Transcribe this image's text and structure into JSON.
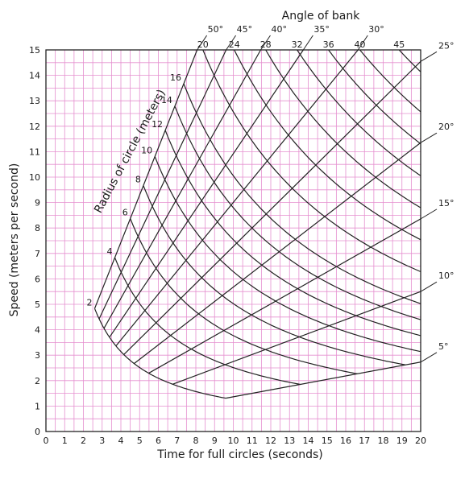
{
  "chart_data": {
    "type": "line",
    "xlabel": "Time for full circles (seconds)",
    "ylabel": "Speed (meters per second)",
    "x_ticks": [
      "0",
      "1",
      "2",
      "3",
      "4",
      "5",
      "6",
      "7",
      "8",
      "9",
      "10",
      "11",
      "12",
      "13",
      "14",
      "15",
      "16",
      "17",
      "18",
      "19",
      "20"
    ],
    "y_ticks": [
      "0",
      "1",
      "2",
      "3",
      "4",
      "5",
      "6",
      "7",
      "8",
      "9",
      "10",
      "11",
      "12",
      "13",
      "14",
      "15"
    ],
    "xlim": [
      0,
      20
    ],
    "ylim": [
      0,
      15
    ],
    "grid": true,
    "radius_label": "Radius of circle (meters)",
    "radius_values": [
      2,
      4,
      6,
      8,
      10,
      12,
      14,
      16,
      20,
      24,
      28,
      32,
      36,
      40,
      45
    ],
    "radius_labels": [
      "2",
      "4",
      "6",
      "8",
      "10",
      "12",
      "14",
      "16",
      "20",
      "24",
      "28",
      "32",
      "36",
      "40",
      "45"
    ],
    "angle_label": "Angle of bank",
    "angles_deg": [
      5,
      10,
      15,
      20,
      25,
      30,
      35,
      40,
      45,
      50
    ],
    "angle_labels": [
      "5°",
      "10°",
      "15°",
      "20°",
      "25°",
      "30°",
      "35°",
      "40°",
      "45°",
      "50°"
    ]
  }
}
